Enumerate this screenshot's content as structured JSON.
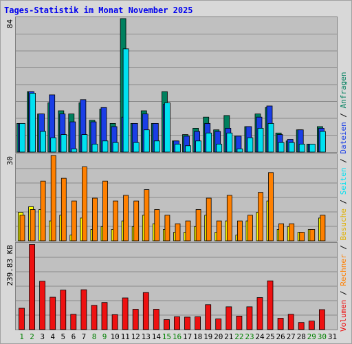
{
  "chart_data": {
    "type": "bar",
    "title": "Tages-Statistik im Monat November 2025",
    "categories": [
      "1",
      "2",
      "3",
      "4",
      "5",
      "6",
      "7",
      "8",
      "9",
      "10",
      "11",
      "12",
      "13",
      "14",
      "15",
      "16",
      "17",
      "18",
      "19",
      "20",
      "21",
      "22",
      "23",
      "24",
      "25",
      "26",
      "27",
      "28",
      "29",
      "30",
      "31"
    ],
    "weekend_days": [
      1,
      2,
      8,
      9,
      15,
      16,
      22,
      23,
      29,
      30
    ],
    "colors": {
      "title": "#0000ee",
      "weekday_label": "#000000",
      "weekend_label": "#008000",
      "anfragen": "#00805e",
      "dateien": "#1a3ee6",
      "seiten": "#00e0f0",
      "besuche": "#ffff00",
      "rechner": "#ff8000",
      "volumen": "#ee1111",
      "plot_bg": "#c0c0c0",
      "outer_bg": "#d8d8d8"
    },
    "panels": [
      {
        "id": "requests",
        "ymax_label": "84",
        "ymax": 84,
        "series": [
          {
            "name": "Anfragen",
            "values": [
              18,
              38,
              24,
              31,
              26,
              24,
              31,
              20,
              27,
              18,
              84,
              18,
              26,
              18,
              38,
              7,
              11,
              15,
              22,
              14,
              23,
              10,
              16,
              24,
              28,
              12,
              7,
              14,
              5,
              16,
              0
            ]
          },
          {
            "name": "Dateien",
            "values": [
              18,
              38,
              24,
              36,
              24,
              19,
              33,
              19,
              28,
              16,
              22,
              18,
              24,
              18,
              30,
              7,
              10,
              13,
              18,
              13,
              15,
              10,
              16,
              22,
              29,
              11,
              8,
              14,
              5,
              15,
              0
            ]
          },
          {
            "name": "Seiten",
            "values": [
              18,
              37,
              13,
              9,
              11,
              2,
              11,
              5,
              7,
              6,
              65,
              6,
              14,
              7,
              31,
              5,
              4,
              7,
              12,
              5,
              12,
              2,
              9,
              15,
              18,
              6,
              6,
              5,
              5,
              13,
              0
            ]
          }
        ]
      },
      {
        "id": "visits",
        "ymax_label": "30",
        "ymax": 30,
        "series": [
          {
            "name": "Besuche",
            "values": [
              10,
              12,
              11,
              7,
              9,
              2,
              8,
              4,
              5,
              4,
              7,
              5,
              9,
              6,
              4,
              3,
              3,
              5,
              9,
              3,
              7,
              2,
              7,
              10,
              14,
              4,
              5,
              3,
              4,
              8,
              0
            ]
          },
          {
            "name": "Rechner",
            "values": [
              9,
              11,
              21,
              30,
              22,
              14,
              26,
              15,
              21,
              14,
              16,
              14,
              18,
              11,
              9,
              6,
              7,
              11,
              15,
              7,
              16,
              7,
              9,
              17,
              24,
              6,
              6,
              3,
              4,
              9,
              0
            ]
          }
        ]
      },
      {
        "id": "volume",
        "ymax_label": "239.83 KB",
        "ymax": 239.83,
        "series": [
          {
            "name": "Volumen",
            "values": [
              60,
              239,
              136,
              91,
              111,
              43,
              112,
              68,
              76,
              42,
              89,
              57,
              104,
              57,
              28,
              36,
              35,
              36,
              70,
              30,
              64,
              38,
              64,
              90,
              137,
              32,
              43,
              20,
              24,
              56,
              0
            ]
          }
        ]
      }
    ],
    "legend_text": {
      "top": [
        "Anfragen",
        "Dateien",
        "Seiten",
        "Besuche",
        "Rechner",
        "Volumen"
      ],
      "separator": " / "
    }
  }
}
